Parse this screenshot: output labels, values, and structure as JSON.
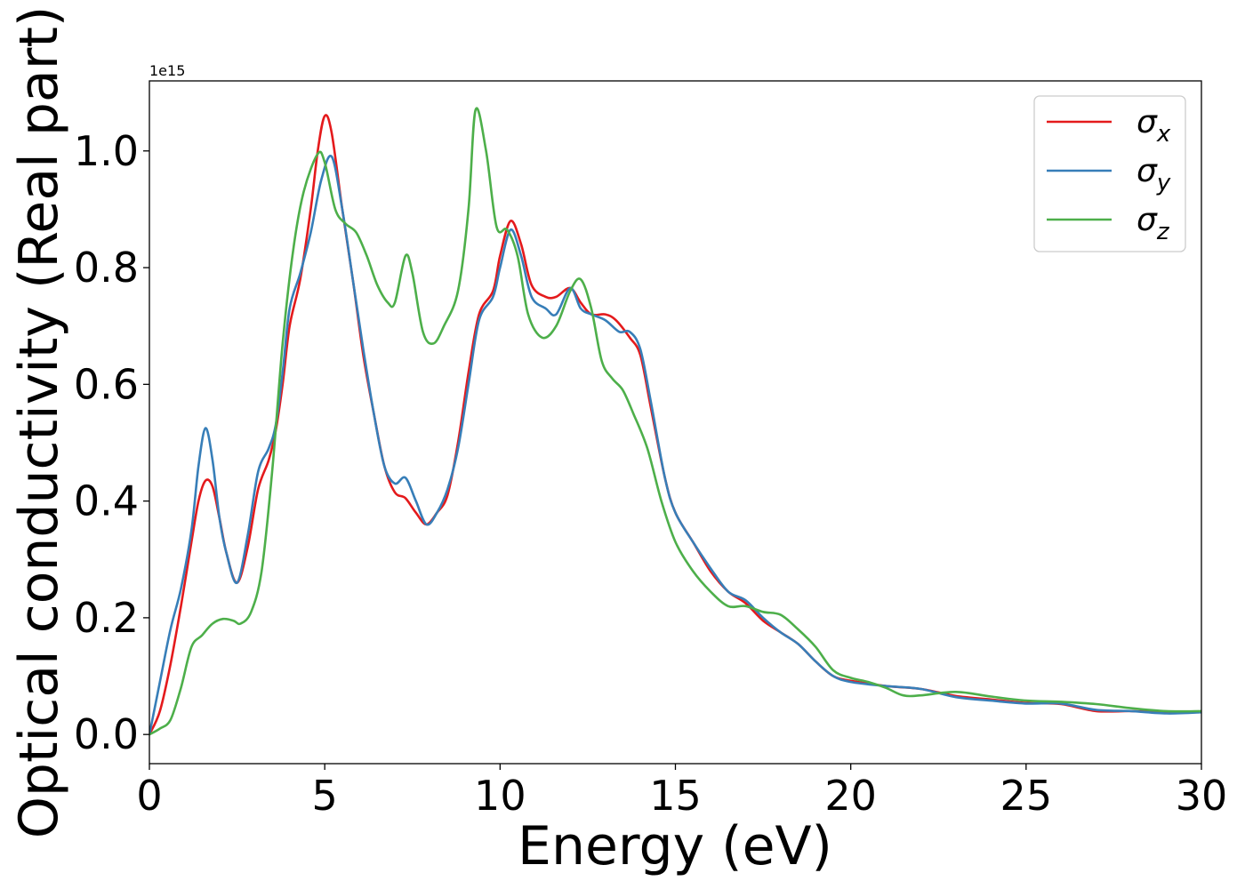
{
  "chart_data": {
    "type": "line",
    "title": "",
    "xlabel": "Energy (eV)",
    "ylabel": "Optical conductivity (Real part)",
    "offset_text": "1e15",
    "xlim": [
      0,
      30
    ],
    "ylim": [
      -0.05,
      1.12
    ],
    "xticks": [
      0,
      5,
      10,
      15,
      20,
      25,
      30
    ],
    "xtick_labels": [
      "0",
      "5",
      "10",
      "15",
      "20",
      "25",
      "30"
    ],
    "yticks": [
      0.0,
      0.2,
      0.4,
      0.6,
      0.8,
      1.0
    ],
    "ytick_labels": [
      "0.0",
      "0.2",
      "0.4",
      "0.6",
      "0.8",
      "1.0"
    ],
    "grid": false,
    "legend_position": "top-right",
    "series": [
      {
        "name": "σx",
        "name_base": "σ",
        "name_sub": "x",
        "color": "#e41a1c",
        "points": [
          [
            0,
            0
          ],
          [
            0.3,
            0.04
          ],
          [
            0.6,
            0.12
          ],
          [
            0.9,
            0.22
          ],
          [
            1.2,
            0.33
          ],
          [
            1.4,
            0.4
          ],
          [
            1.6,
            0.435
          ],
          [
            1.8,
            0.425
          ],
          [
            2.0,
            0.37
          ],
          [
            2.2,
            0.31
          ],
          [
            2.5,
            0.26
          ],
          [
            2.8,
            0.32
          ],
          [
            3.1,
            0.42
          ],
          [
            3.4,
            0.47
          ],
          [
            3.6,
            0.52
          ],
          [
            3.8,
            0.6
          ],
          [
            4.0,
            0.7
          ],
          [
            4.3,
            0.78
          ],
          [
            4.6,
            0.9
          ],
          [
            4.8,
            1.0
          ],
          [
            5.0,
            1.06
          ],
          [
            5.2,
            1.03
          ],
          [
            5.5,
            0.9
          ],
          [
            5.8,
            0.78
          ],
          [
            6.1,
            0.65
          ],
          [
            6.4,
            0.55
          ],
          [
            6.7,
            0.46
          ],
          [
            7.0,
            0.415
          ],
          [
            7.3,
            0.405
          ],
          [
            7.6,
            0.38
          ],
          [
            7.9,
            0.36
          ],
          [
            8.2,
            0.38
          ],
          [
            8.5,
            0.41
          ],
          [
            8.8,
            0.5
          ],
          [
            9.1,
            0.62
          ],
          [
            9.4,
            0.72
          ],
          [
            9.8,
            0.76
          ],
          [
            10.0,
            0.82
          ],
          [
            10.3,
            0.88
          ],
          [
            10.6,
            0.84
          ],
          [
            10.9,
            0.77
          ],
          [
            11.3,
            0.75
          ],
          [
            11.6,
            0.75
          ],
          [
            12.0,
            0.765
          ],
          [
            12.3,
            0.74
          ],
          [
            12.6,
            0.72
          ],
          [
            13.0,
            0.72
          ],
          [
            13.3,
            0.71
          ],
          [
            13.7,
            0.68
          ],
          [
            14.0,
            0.65
          ],
          [
            14.3,
            0.56
          ],
          [
            14.7,
            0.44
          ],
          [
            15.0,
            0.38
          ],
          [
            15.5,
            0.33
          ],
          [
            16.0,
            0.28
          ],
          [
            16.5,
            0.245
          ],
          [
            17.0,
            0.225
          ],
          [
            17.5,
            0.195
          ],
          [
            18.0,
            0.175
          ],
          [
            18.5,
            0.155
          ],
          [
            19.0,
            0.125
          ],
          [
            19.5,
            0.1
          ],
          [
            20.0,
            0.092
          ],
          [
            21.0,
            0.083
          ],
          [
            22.0,
            0.078
          ],
          [
            23.0,
            0.066
          ],
          [
            24.0,
            0.06
          ],
          [
            25.0,
            0.054
          ],
          [
            26.0,
            0.052
          ],
          [
            27.0,
            0.04
          ],
          [
            28.0,
            0.04
          ],
          [
            29.0,
            0.038
          ],
          [
            30.0,
            0.038
          ]
        ]
      },
      {
        "name": "σy",
        "name_base": "σ",
        "name_sub": "y",
        "color": "#377eb8",
        "points": [
          [
            0,
            0
          ],
          [
            0.3,
            0.09
          ],
          [
            0.6,
            0.18
          ],
          [
            0.9,
            0.25
          ],
          [
            1.2,
            0.35
          ],
          [
            1.4,
            0.46
          ],
          [
            1.6,
            0.525
          ],
          [
            1.8,
            0.47
          ],
          [
            2.0,
            0.37
          ],
          [
            2.2,
            0.31
          ],
          [
            2.5,
            0.26
          ],
          [
            2.8,
            0.34
          ],
          [
            3.1,
            0.45
          ],
          [
            3.4,
            0.49
          ],
          [
            3.6,
            0.53
          ],
          [
            3.8,
            0.62
          ],
          [
            4.0,
            0.73
          ],
          [
            4.3,
            0.79
          ],
          [
            4.6,
            0.86
          ],
          [
            4.9,
            0.95
          ],
          [
            5.2,
            0.99
          ],
          [
            5.5,
            0.9
          ],
          [
            5.8,
            0.78
          ],
          [
            6.1,
            0.66
          ],
          [
            6.4,
            0.55
          ],
          [
            6.7,
            0.46
          ],
          [
            7.0,
            0.43
          ],
          [
            7.3,
            0.44
          ],
          [
            7.6,
            0.4
          ],
          [
            7.9,
            0.36
          ],
          [
            8.2,
            0.38
          ],
          [
            8.5,
            0.42
          ],
          [
            8.8,
            0.49
          ],
          [
            9.1,
            0.6
          ],
          [
            9.4,
            0.71
          ],
          [
            9.8,
            0.75
          ],
          [
            10.0,
            0.8
          ],
          [
            10.3,
            0.865
          ],
          [
            10.6,
            0.82
          ],
          [
            10.9,
            0.75
          ],
          [
            11.3,
            0.73
          ],
          [
            11.6,
            0.72
          ],
          [
            12.0,
            0.765
          ],
          [
            12.3,
            0.73
          ],
          [
            12.6,
            0.72
          ],
          [
            13.0,
            0.71
          ],
          [
            13.4,
            0.69
          ],
          [
            13.7,
            0.69
          ],
          [
            14.0,
            0.66
          ],
          [
            14.3,
            0.57
          ],
          [
            14.7,
            0.44
          ],
          [
            15.0,
            0.38
          ],
          [
            15.5,
            0.33
          ],
          [
            16.0,
            0.285
          ],
          [
            16.5,
            0.245
          ],
          [
            17.0,
            0.23
          ],
          [
            17.5,
            0.2
          ],
          [
            18.0,
            0.175
          ],
          [
            18.5,
            0.155
          ],
          [
            19.0,
            0.125
          ],
          [
            19.5,
            0.1
          ],
          [
            20.0,
            0.09
          ],
          [
            21.0,
            0.083
          ],
          [
            22.0,
            0.078
          ],
          [
            23.0,
            0.064
          ],
          [
            24.0,
            0.058
          ],
          [
            25.0,
            0.053
          ],
          [
            26.0,
            0.053
          ],
          [
            27.0,
            0.042
          ],
          [
            28.0,
            0.04
          ],
          [
            29.0,
            0.036
          ],
          [
            30.0,
            0.038
          ]
        ]
      },
      {
        "name": "σz",
        "name_base": "σ",
        "name_sub": "z",
        "color": "#4daf4a",
        "points": [
          [
            0,
            0
          ],
          [
            0.3,
            0.01
          ],
          [
            0.6,
            0.025
          ],
          [
            0.9,
            0.08
          ],
          [
            1.2,
            0.15
          ],
          [
            1.5,
            0.17
          ],
          [
            1.8,
            0.19
          ],
          [
            2.1,
            0.198
          ],
          [
            2.4,
            0.195
          ],
          [
            2.6,
            0.19
          ],
          [
            2.9,
            0.21
          ],
          [
            3.2,
            0.28
          ],
          [
            3.5,
            0.45
          ],
          [
            3.8,
            0.67
          ],
          [
            4.1,
            0.83
          ],
          [
            4.4,
            0.93
          ],
          [
            4.8,
            0.995
          ],
          [
            5.0,
            0.98
          ],
          [
            5.3,
            0.9
          ],
          [
            5.6,
            0.875
          ],
          [
            5.9,
            0.86
          ],
          [
            6.2,
            0.82
          ],
          [
            6.5,
            0.77
          ],
          [
            6.8,
            0.74
          ],
          [
            7.0,
            0.74
          ],
          [
            7.3,
            0.82
          ],
          [
            7.5,
            0.79
          ],
          [
            7.8,
            0.69
          ],
          [
            8.1,
            0.67
          ],
          [
            8.4,
            0.7
          ],
          [
            8.8,
            0.76
          ],
          [
            9.1,
            0.9
          ],
          [
            9.3,
            1.07
          ],
          [
            9.6,
            1.0
          ],
          [
            9.9,
            0.87
          ],
          [
            10.2,
            0.865
          ],
          [
            10.5,
            0.82
          ],
          [
            10.8,
            0.72
          ],
          [
            11.2,
            0.68
          ],
          [
            11.6,
            0.7
          ],
          [
            12.0,
            0.76
          ],
          [
            12.3,
            0.78
          ],
          [
            12.6,
            0.73
          ],
          [
            12.9,
            0.64
          ],
          [
            13.2,
            0.61
          ],
          [
            13.5,
            0.59
          ],
          [
            13.8,
            0.55
          ],
          [
            14.2,
            0.49
          ],
          [
            14.6,
            0.4
          ],
          [
            15.0,
            0.33
          ],
          [
            15.5,
            0.28
          ],
          [
            16.0,
            0.245
          ],
          [
            16.5,
            0.22
          ],
          [
            17.0,
            0.22
          ],
          [
            17.5,
            0.21
          ],
          [
            18.0,
            0.205
          ],
          [
            18.5,
            0.18
          ],
          [
            19.0,
            0.15
          ],
          [
            19.5,
            0.11
          ],
          [
            20.0,
            0.097
          ],
          [
            20.5,
            0.09
          ],
          [
            21.0,
            0.08
          ],
          [
            21.5,
            0.067
          ],
          [
            22.0,
            0.067
          ],
          [
            23.0,
            0.073
          ],
          [
            24.0,
            0.065
          ],
          [
            25.0,
            0.058
          ],
          [
            26.0,
            0.056
          ],
          [
            27.0,
            0.052
          ],
          [
            28.0,
            0.045
          ],
          [
            29.0,
            0.04
          ],
          [
            30.0,
            0.04
          ]
        ]
      }
    ]
  }
}
